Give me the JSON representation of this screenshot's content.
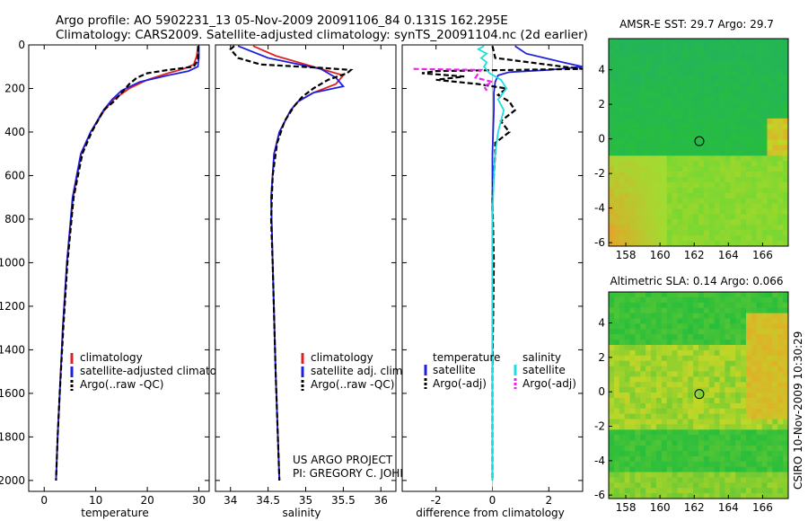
{
  "header": {
    "line1": "Argo profile: AO 5902231_13 05-Nov-2009 20091106_84 0.131S 162.295E",
    "line2": "Climatology: CARS2009. Satellite-adjusted climatology: synTS_20091104.nc (2d earlier)"
  },
  "side_label": "CSIRO 10-Nov-2009 10:30:29",
  "project": {
    "line1": "US ARGO PROJECT",
    "line2": "PI: GREGORY C. JOHNSON"
  },
  "colors": {
    "climatology": "#dd2222",
    "satellite": "#1f1fe0",
    "argo": "#000000",
    "sal_satellite": "#22dddd",
    "sal_argo": "#ee22ee",
    "map_green": "#22bb33",
    "map_orange": "#f0a020"
  },
  "chart_data": [
    {
      "type": "line",
      "id": "temperature",
      "xlabel": "temperature",
      "xlim": [
        -3,
        32
      ],
      "ylim": [
        2050,
        0
      ],
      "xticks": [
        0,
        10,
        20,
        30
      ],
      "yticks": [
        0,
        200,
        400,
        600,
        800,
        1000,
        1200,
        1400,
        1600,
        1800,
        2000
      ],
      "legend": [
        "climatology",
        "satellite-adjusted climatology",
        "Argo(..raw -QC)"
      ],
      "series": [
        {
          "name": "climatology",
          "color": "#dd2222",
          "dash": false,
          "depth": [
            5,
            50,
            90,
            110,
            130,
            160,
            200,
            250,
            300,
            400,
            500,
            700,
            1000,
            1300,
            1600,
            1800,
            2000
          ],
          "values": [
            29.8,
            29.6,
            29.0,
            27.0,
            24.0,
            20.0,
            16.5,
            13.5,
            11.7,
            9.0,
            7.2,
            5.6,
            4.4,
            3.6,
            3.0,
            2.6,
            2.3
          ]
        },
        {
          "name": "satellite-adjusted climatology",
          "color": "#1f1fe0",
          "dash": false,
          "depth": [
            5,
            60,
            100,
            120,
            140,
            170,
            210,
            250,
            300,
            400,
            500,
            700,
            1000,
            1300,
            1600,
            1800,
            2000
          ],
          "values": [
            30.0,
            30.0,
            29.8,
            28.0,
            24.0,
            18.5,
            15.0,
            13.2,
            11.5,
            9.0,
            7.1,
            5.5,
            4.4,
            3.6,
            3.0,
            2.6,
            2.3
          ]
        },
        {
          "name": "Argo(..raw -QC)",
          "color": "#000000",
          "dash": true,
          "depth": [
            5,
            70,
            100,
            115,
            130,
            150,
            180,
            220,
            260,
            300,
            400,
            500,
            700,
            1000,
            1300,
            1600,
            1800,
            2000
          ],
          "values": [
            29.9,
            29.8,
            29.0,
            24.0,
            20.0,
            18.0,
            16.5,
            15.0,
            13.5,
            11.5,
            9.2,
            7.4,
            5.7,
            4.5,
            3.7,
            3.0,
            2.6,
            2.3
          ]
        }
      ]
    },
    {
      "type": "line",
      "id": "salinity",
      "xlabel": "salinity",
      "xlim": [
        33.8,
        36.2
      ],
      "ylim": [
        2050,
        0
      ],
      "xticks": [
        34,
        34.5,
        35,
        35.5,
        36
      ],
      "legend": [
        "climatology",
        "satellite adj. clim.",
        "Argo(..raw -QC)"
      ],
      "series": [
        {
          "name": "climatology",
          "color": "#dd2222",
          "dash": false,
          "depth": [
            5,
            50,
            100,
            140,
            180,
            220,
            260,
            300,
            400,
            500,
            700,
            1000,
            1500,
            2000
          ],
          "values": [
            34.3,
            34.6,
            35.1,
            35.5,
            35.4,
            35.1,
            34.9,
            34.8,
            34.65,
            34.58,
            34.54,
            34.56,
            34.6,
            34.65
          ]
        },
        {
          "name": "satellite adj. clim.",
          "color": "#1f1fe0",
          "dash": false,
          "depth": [
            5,
            60,
            110,
            150,
            190,
            220,
            260,
            300,
            400,
            500,
            700,
            1000,
            1500,
            2000
          ],
          "values": [
            34.1,
            34.5,
            35.2,
            35.4,
            35.5,
            35.1,
            34.9,
            34.8,
            34.65,
            34.58,
            34.54,
            34.56,
            34.6,
            34.65
          ]
        },
        {
          "name": "Argo(..raw -QC)",
          "color": "#000000",
          "dash": true,
          "depth": [
            5,
            20,
            60,
            90,
            105,
            115,
            130,
            160,
            200,
            240,
            280,
            350,
            450,
            600,
            800,
            1000,
            1500,
            2000
          ],
          "values": [
            34.05,
            34.0,
            34.1,
            34.4,
            35.2,
            35.6,
            35.55,
            35.3,
            35.1,
            34.95,
            34.85,
            34.72,
            34.62,
            34.56,
            34.54,
            34.56,
            34.6,
            34.65
          ]
        }
      ]
    },
    {
      "type": "line",
      "id": "difference",
      "xlabel": "difference from climatology",
      "xlim": [
        -3.2,
        3.2
      ],
      "ylim": [
        2050,
        0
      ],
      "xticks": [
        -2,
        0,
        2
      ],
      "legend_left_title": "temperature",
      "legend_right_title": "salinity",
      "legend": [
        "satellite",
        "Argo(-adj)",
        "satellite",
        "Argo(-adj)"
      ],
      "series": [
        {
          "name": "temperature satellite",
          "color": "#1f1fe0",
          "dash": false,
          "depth": [
            5,
            40,
            80,
            100,
            115,
            125,
            140,
            170,
            220,
            300,
            500,
            800,
            1200,
            1600,
            2000
          ],
          "values": [
            0.8,
            1.2,
            2.5,
            3.2,
            2.0,
            0.6,
            0.2,
            0.1,
            0.05,
            0.05,
            0.0,
            0.0,
            0.0,
            0.0,
            0.0
          ]
        },
        {
          "name": "temperature Argo(-adj)",
          "color": "#000000",
          "dash": true,
          "depth": [
            5,
            60,
            100,
            110,
            120,
            130,
            145,
            160,
            180,
            200,
            230,
            260,
            300,
            350,
            400,
            450,
            500,
            700,
            1000,
            1500,
            2000
          ],
          "values": [
            0.0,
            0.1,
            2.5,
            3.2,
            -2.0,
            -2.5,
            -1.0,
            -2.0,
            -0.5,
            0.5,
            0.2,
            0.6,
            0.8,
            0.3,
            0.6,
            0.1,
            0.1,
            0.0,
            0.05,
            0.0,
            0.0
          ]
        },
        {
          "name": "salinity satellite",
          "color": "#22dddd",
          "dash": false,
          "depth": [
            5,
            20,
            40,
            60,
            80,
            100,
            130,
            160,
            200,
            250,
            300,
            400,
            500,
            600,
            800,
            1000,
            1500,
            2000
          ],
          "values": [
            -0.3,
            -0.5,
            -0.2,
            -0.4,
            -0.2,
            -0.3,
            -0.1,
            0.3,
            0.5,
            0.2,
            0.4,
            0.2,
            0.1,
            0.05,
            0.0,
            0.0,
            0.0,
            0.0
          ]
        },
        {
          "name": "salinity Argo(-adj)",
          "color": "#ee22ee",
          "dash": true,
          "depth": [
            110,
            115,
            130,
            150,
            170,
            190,
            210
          ],
          "values": [
            -2.8,
            -0.4,
            -0.5,
            -0.6,
            0.0,
            -0.3,
            -0.2
          ]
        }
      ]
    },
    {
      "type": "heatmap",
      "id": "sst-map",
      "title": "AMSR-E SST: 29.7 Argo: 29.7",
      "xlim": [
        157,
        167.5
      ],
      "ylim": [
        -6.2,
        5.8
      ],
      "xticks": [
        158,
        160,
        162,
        164,
        166
      ],
      "yticks": [
        -6,
        -4,
        -2,
        0,
        2,
        4
      ],
      "marker": {
        "lon": 162.3,
        "lat": -0.13
      }
    },
    {
      "type": "heatmap",
      "id": "sla-map",
      "title": "Altimetric SLA: 0.14 Argo: 0.066",
      "xlim": [
        157,
        167.5
      ],
      "ylim": [
        -6.2,
        5.8
      ],
      "xticks": [
        158,
        160,
        162,
        164,
        166
      ],
      "yticks": [
        -6,
        -4,
        -2,
        0,
        2,
        4
      ],
      "marker": {
        "lon": 162.3,
        "lat": -0.13
      }
    }
  ]
}
